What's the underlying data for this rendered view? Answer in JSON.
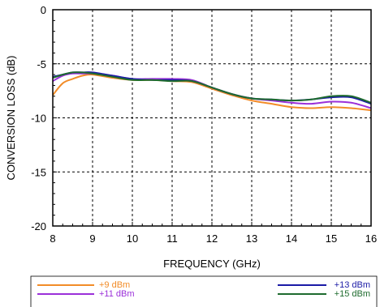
{
  "chart_data": {
    "type": "line",
    "xlabel": "FREQUENCY (GHz)",
    "ylabel": "CONVERSION LOSS (dB)",
    "xlim": [
      8,
      16
    ],
    "ylim": [
      -20,
      0
    ],
    "xticks": [
      8,
      9,
      10,
      11,
      12,
      13,
      14,
      15,
      16
    ],
    "yticks": [
      0,
      -5,
      -10,
      -15,
      -20
    ],
    "grid": true,
    "legend_position": "bottom",
    "series": [
      {
        "name": "+9 dBm",
        "color": "#f28c28",
        "x": [
          8.0,
          8.25,
          8.5,
          8.75,
          9.0,
          9.5,
          10.0,
          10.5,
          11.0,
          11.5,
          12.0,
          12.5,
          13.0,
          13.5,
          14.0,
          14.5,
          15.0,
          15.5,
          16.0
        ],
        "y": [
          -7.9,
          -6.8,
          -6.4,
          -6.1,
          -6.0,
          -6.3,
          -6.5,
          -6.5,
          -6.6,
          -6.7,
          -7.3,
          -7.9,
          -8.4,
          -8.7,
          -9.0,
          -9.1,
          -9.0,
          -9.1,
          -9.3
        ]
      },
      {
        "name": "+11 dBm",
        "color": "#9b30d9",
        "x": [
          8.0,
          8.25,
          8.5,
          8.75,
          9.0,
          9.5,
          10.0,
          10.5,
          11.0,
          11.5,
          12.0,
          12.5,
          13.0,
          13.5,
          14.0,
          14.5,
          15.0,
          15.5,
          16.0
        ],
        "y": [
          -6.6,
          -6.1,
          -5.9,
          -5.9,
          -5.9,
          -6.1,
          -6.4,
          -6.4,
          -6.4,
          -6.5,
          -7.2,
          -7.8,
          -8.2,
          -8.4,
          -8.6,
          -8.7,
          -8.5,
          -8.6,
          -9.1
        ]
      },
      {
        "name": "+13 dBm",
        "color": "#1a1aa6",
        "x": [
          8.0,
          8.25,
          8.5,
          8.75,
          9.0,
          9.5,
          10.0,
          10.5,
          11.0,
          11.5,
          12.0,
          12.5,
          13.0,
          13.5,
          14.0,
          14.5,
          15.0,
          15.5,
          16.0
        ],
        "y": [
          -6.2,
          -6.0,
          -5.8,
          -5.8,
          -5.8,
          -6.1,
          -6.4,
          -6.5,
          -6.5,
          -6.6,
          -7.2,
          -7.8,
          -8.2,
          -8.3,
          -8.4,
          -8.3,
          -8.1,
          -8.1,
          -8.7
        ]
      },
      {
        "name": "+15 dBm",
        "color": "#1e6b2e",
        "x": [
          8.0,
          8.25,
          8.5,
          8.75,
          9.0,
          9.5,
          10.0,
          10.5,
          11.0,
          11.5,
          12.0,
          12.5,
          13.0,
          13.5,
          14.0,
          14.5,
          15.0,
          15.5,
          16.0
        ],
        "y": [
          -6.3,
          -6.0,
          -5.8,
          -5.8,
          -5.9,
          -6.2,
          -6.5,
          -6.5,
          -6.6,
          -6.6,
          -7.2,
          -7.8,
          -8.2,
          -8.3,
          -8.4,
          -8.3,
          -8.0,
          -8.0,
          -8.6
        ]
      }
    ]
  }
}
